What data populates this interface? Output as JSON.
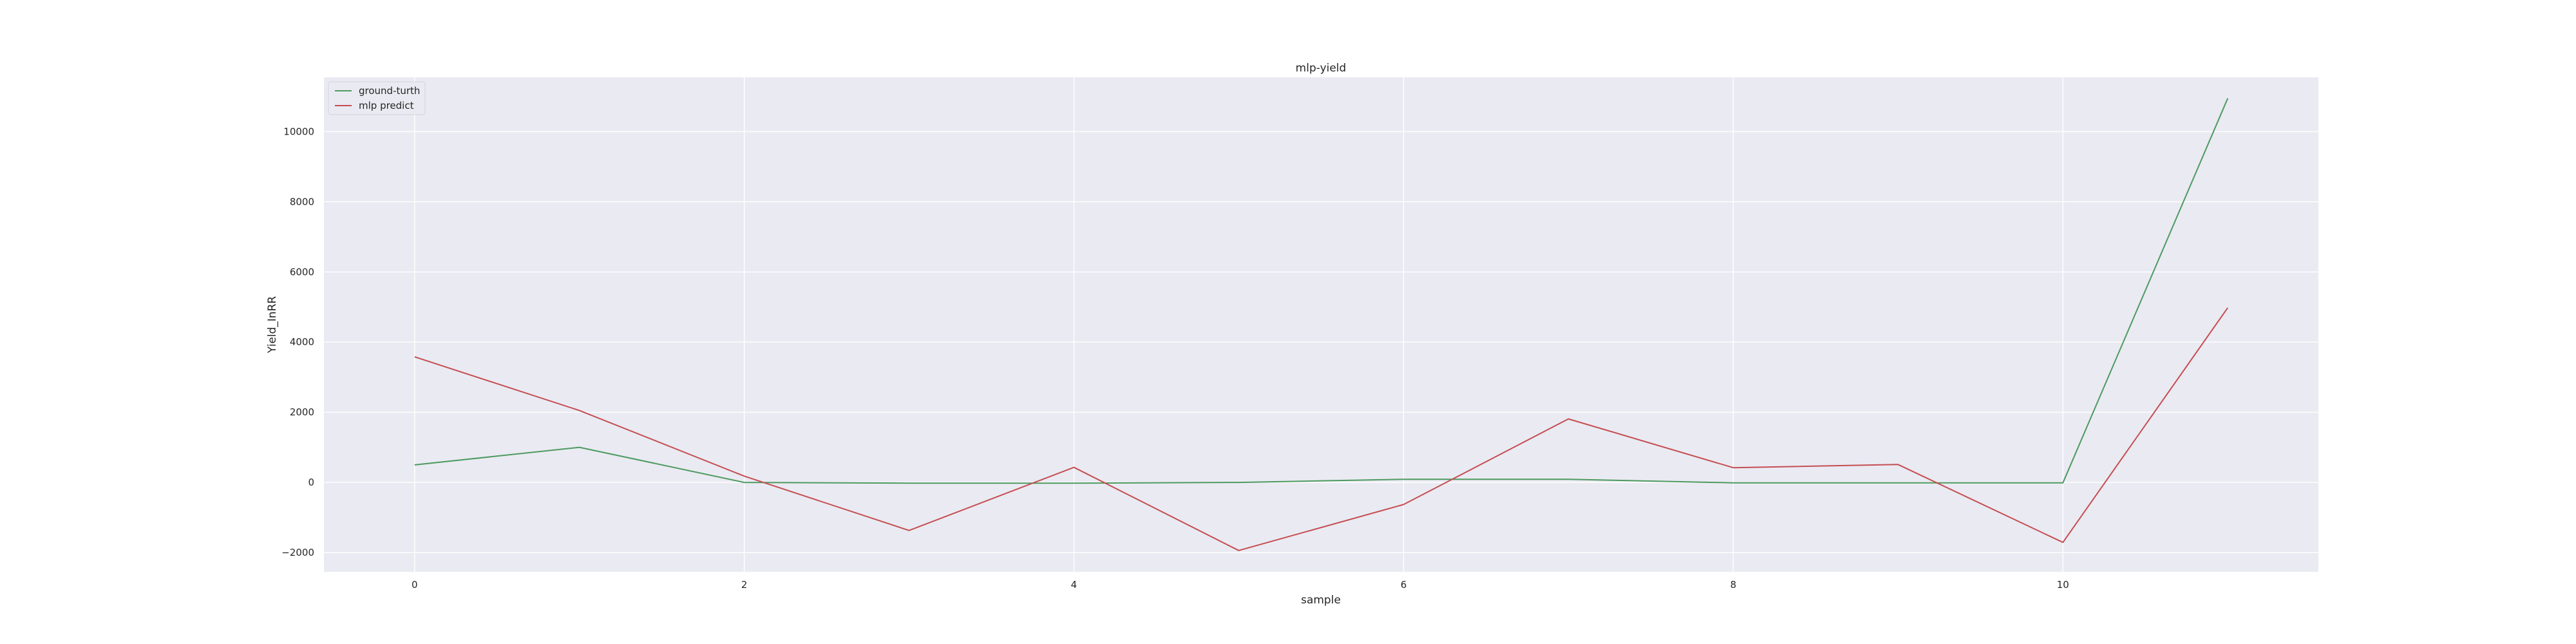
{
  "chart_data": {
    "type": "line",
    "title": "mlp-yield",
    "xlabel": "sample",
    "ylabel": "Yield_InRR",
    "x": [
      0,
      1,
      2,
      3,
      4,
      5,
      6,
      7,
      8,
      9,
      10,
      11
    ],
    "xlim": [
      -0.55,
      11.55
    ],
    "ylim": [
      -2550,
      11550
    ],
    "xticks": [
      0,
      2,
      4,
      6,
      8,
      10
    ],
    "yticks": [
      -2000,
      0,
      2000,
      4000,
      6000,
      8000,
      10000
    ],
    "grid": true,
    "legend_position": "top-left",
    "background_color": "#eaeaf2",
    "grid_color": "#ffffff",
    "series": [
      {
        "name": "ground-turth",
        "color": "#4c9a5f",
        "values": [
          500,
          1000,
          0,
          -20,
          -20,
          0,
          90,
          90,
          -10,
          -10,
          -10,
          10950
        ]
      },
      {
        "name": "mlp predict",
        "color": "#c44e52",
        "values": [
          3580,
          2050,
          180,
          -1370,
          430,
          -1940,
          -630,
          1810,
          420,
          510,
          -1710,
          4980
        ]
      }
    ]
  }
}
